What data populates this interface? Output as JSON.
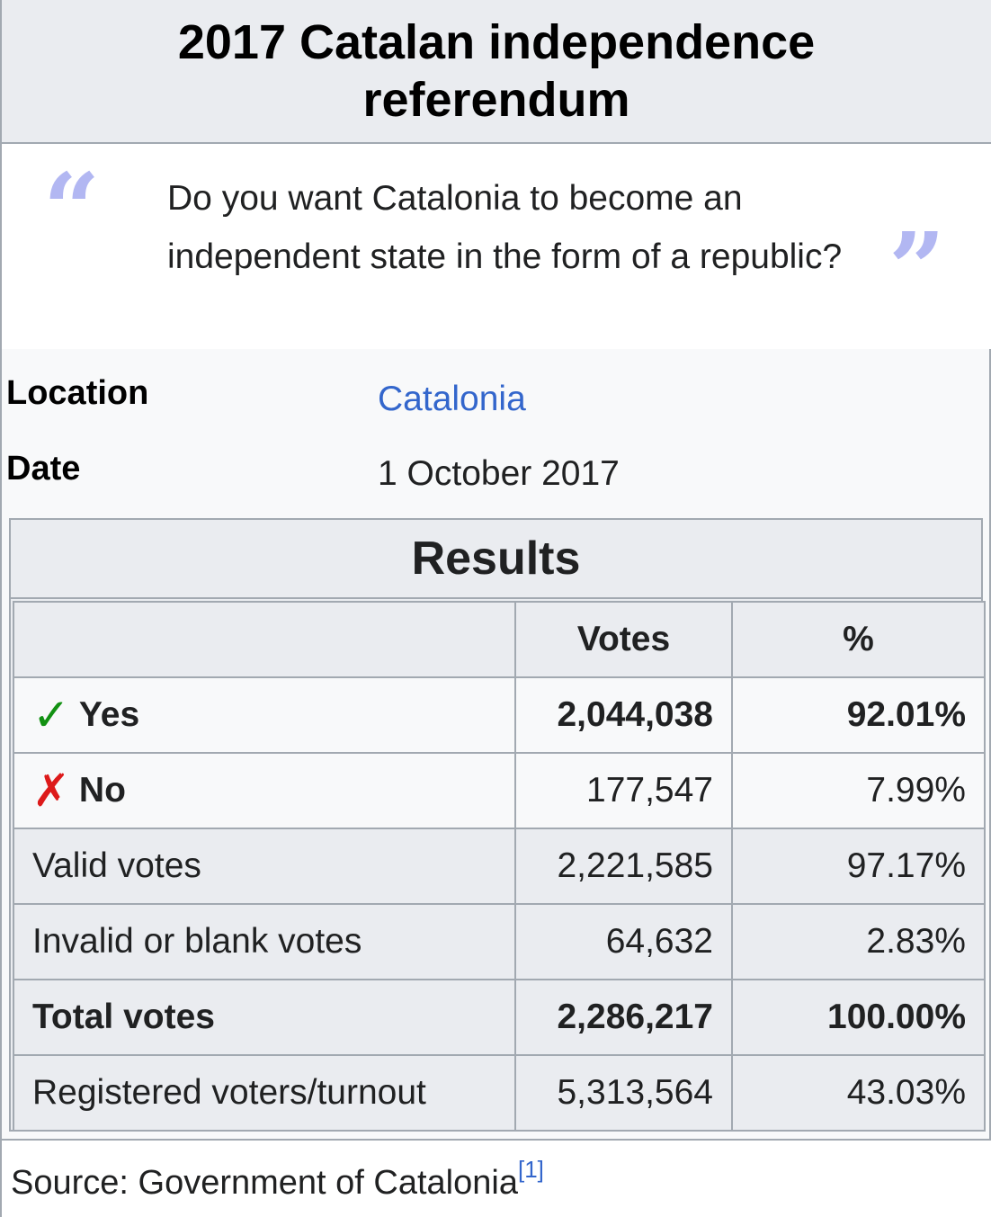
{
  "title": "2017 Catalan independence referendum",
  "question": "Do you want Catalonia to become an independent state in the form of a republic?",
  "location": {
    "label": "Location",
    "value": "Catalonia"
  },
  "date": {
    "label": "Date",
    "value": "1 October 2017"
  },
  "results": {
    "heading": "Results",
    "columns": [
      "",
      "Votes",
      "%"
    ],
    "rows": [
      {
        "label": "Yes",
        "votes": "2,044,038",
        "pct": "92.01%"
      },
      {
        "label": "No",
        "votes": "177,547",
        "pct": "7.99%"
      },
      {
        "label": "Valid votes",
        "votes": "2,221,585",
        "pct": "97.17%"
      },
      {
        "label": "Invalid or blank votes",
        "votes": "64,632",
        "pct": "2.83%"
      },
      {
        "label": "Total votes",
        "votes": "2,286,217",
        "pct": "100.00%"
      },
      {
        "label": "Registered voters/turnout",
        "votes": "5,313,564",
        "pct": "43.03%"
      }
    ]
  },
  "source": {
    "text": "Source: Government of Catalonia",
    "ref": "[1]"
  },
  "icons": {
    "yes": "check-icon",
    "no": "cross-icon",
    "quote_open": "open-quote-icon",
    "quote_close": "close-quote-icon"
  },
  "colors": {
    "link": "#3366cc",
    "yes": "#129112",
    "no": "#dd1a1a",
    "quote": "#b2b7f2",
    "header_bg": "#eaecf0"
  }
}
